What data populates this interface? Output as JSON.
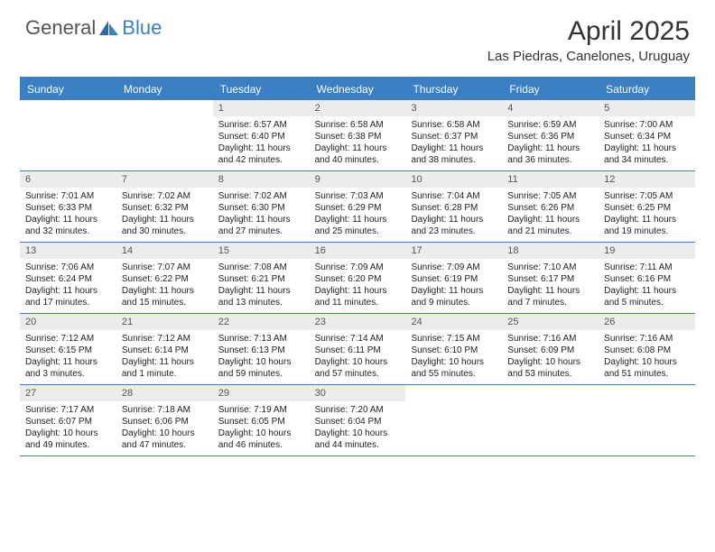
{
  "brand": {
    "general": "General",
    "blue": "Blue"
  },
  "title": "April 2025",
  "location": "Las Piedras, Canelones, Uruguay",
  "weekdays": [
    "Sunday",
    "Monday",
    "Tuesday",
    "Wednesday",
    "Thursday",
    "Friday",
    "Saturday"
  ],
  "colors": {
    "header_bg": "#3a7fc4",
    "header_text": "#ffffff",
    "daynum_bg": "#ececec",
    "border": "#3a7fc4",
    "text": "#222222"
  },
  "fonts": {
    "title_size": 30,
    "location_size": 15,
    "weekday_size": 12,
    "daynum_size": 11,
    "body_size": 10
  },
  "weeks": [
    [
      null,
      null,
      {
        "n": "1",
        "sr": "Sunrise: 6:57 AM",
        "ss": "Sunset: 6:40 PM",
        "dl1": "Daylight: 11 hours",
        "dl2": "and 42 minutes."
      },
      {
        "n": "2",
        "sr": "Sunrise: 6:58 AM",
        "ss": "Sunset: 6:38 PM",
        "dl1": "Daylight: 11 hours",
        "dl2": "and 40 minutes."
      },
      {
        "n": "3",
        "sr": "Sunrise: 6:58 AM",
        "ss": "Sunset: 6:37 PM",
        "dl1": "Daylight: 11 hours",
        "dl2": "and 38 minutes."
      },
      {
        "n": "4",
        "sr": "Sunrise: 6:59 AM",
        "ss": "Sunset: 6:36 PM",
        "dl1": "Daylight: 11 hours",
        "dl2": "and 36 minutes."
      },
      {
        "n": "5",
        "sr": "Sunrise: 7:00 AM",
        "ss": "Sunset: 6:34 PM",
        "dl1": "Daylight: 11 hours",
        "dl2": "and 34 minutes."
      }
    ],
    [
      {
        "n": "6",
        "sr": "Sunrise: 7:01 AM",
        "ss": "Sunset: 6:33 PM",
        "dl1": "Daylight: 11 hours",
        "dl2": "and 32 minutes."
      },
      {
        "n": "7",
        "sr": "Sunrise: 7:02 AM",
        "ss": "Sunset: 6:32 PM",
        "dl1": "Daylight: 11 hours",
        "dl2": "and 30 minutes."
      },
      {
        "n": "8",
        "sr": "Sunrise: 7:02 AM",
        "ss": "Sunset: 6:30 PM",
        "dl1": "Daylight: 11 hours",
        "dl2": "and 27 minutes."
      },
      {
        "n": "9",
        "sr": "Sunrise: 7:03 AM",
        "ss": "Sunset: 6:29 PM",
        "dl1": "Daylight: 11 hours",
        "dl2": "and 25 minutes."
      },
      {
        "n": "10",
        "sr": "Sunrise: 7:04 AM",
        "ss": "Sunset: 6:28 PM",
        "dl1": "Daylight: 11 hours",
        "dl2": "and 23 minutes."
      },
      {
        "n": "11",
        "sr": "Sunrise: 7:05 AM",
        "ss": "Sunset: 6:26 PM",
        "dl1": "Daylight: 11 hours",
        "dl2": "and 21 minutes."
      },
      {
        "n": "12",
        "sr": "Sunrise: 7:05 AM",
        "ss": "Sunset: 6:25 PM",
        "dl1": "Daylight: 11 hours",
        "dl2": "and 19 minutes."
      }
    ],
    [
      {
        "n": "13",
        "sr": "Sunrise: 7:06 AM",
        "ss": "Sunset: 6:24 PM",
        "dl1": "Daylight: 11 hours",
        "dl2": "and 17 minutes."
      },
      {
        "n": "14",
        "sr": "Sunrise: 7:07 AM",
        "ss": "Sunset: 6:22 PM",
        "dl1": "Daylight: 11 hours",
        "dl2": "and 15 minutes."
      },
      {
        "n": "15",
        "sr": "Sunrise: 7:08 AM",
        "ss": "Sunset: 6:21 PM",
        "dl1": "Daylight: 11 hours",
        "dl2": "and 13 minutes."
      },
      {
        "n": "16",
        "sr": "Sunrise: 7:09 AM",
        "ss": "Sunset: 6:20 PM",
        "dl1": "Daylight: 11 hours",
        "dl2": "and 11 minutes."
      },
      {
        "n": "17",
        "sr": "Sunrise: 7:09 AM",
        "ss": "Sunset: 6:19 PM",
        "dl1": "Daylight: 11 hours",
        "dl2": "and 9 minutes."
      },
      {
        "n": "18",
        "sr": "Sunrise: 7:10 AM",
        "ss": "Sunset: 6:17 PM",
        "dl1": "Daylight: 11 hours",
        "dl2": "and 7 minutes."
      },
      {
        "n": "19",
        "sr": "Sunrise: 7:11 AM",
        "ss": "Sunset: 6:16 PM",
        "dl1": "Daylight: 11 hours",
        "dl2": "and 5 minutes."
      }
    ],
    [
      {
        "n": "20",
        "sr": "Sunrise: 7:12 AM",
        "ss": "Sunset: 6:15 PM",
        "dl1": "Daylight: 11 hours",
        "dl2": "and 3 minutes."
      },
      {
        "n": "21",
        "sr": "Sunrise: 7:12 AM",
        "ss": "Sunset: 6:14 PM",
        "dl1": "Daylight: 11 hours",
        "dl2": "and 1 minute."
      },
      {
        "n": "22",
        "sr": "Sunrise: 7:13 AM",
        "ss": "Sunset: 6:13 PM",
        "dl1": "Daylight: 10 hours",
        "dl2": "and 59 minutes."
      },
      {
        "n": "23",
        "sr": "Sunrise: 7:14 AM",
        "ss": "Sunset: 6:11 PM",
        "dl1": "Daylight: 10 hours",
        "dl2": "and 57 minutes."
      },
      {
        "n": "24",
        "sr": "Sunrise: 7:15 AM",
        "ss": "Sunset: 6:10 PM",
        "dl1": "Daylight: 10 hours",
        "dl2": "and 55 minutes."
      },
      {
        "n": "25",
        "sr": "Sunrise: 7:16 AM",
        "ss": "Sunset: 6:09 PM",
        "dl1": "Daylight: 10 hours",
        "dl2": "and 53 minutes."
      },
      {
        "n": "26",
        "sr": "Sunrise: 7:16 AM",
        "ss": "Sunset: 6:08 PM",
        "dl1": "Daylight: 10 hours",
        "dl2": "and 51 minutes."
      }
    ],
    [
      {
        "n": "27",
        "sr": "Sunrise: 7:17 AM",
        "ss": "Sunset: 6:07 PM",
        "dl1": "Daylight: 10 hours",
        "dl2": "and 49 minutes."
      },
      {
        "n": "28",
        "sr": "Sunrise: 7:18 AM",
        "ss": "Sunset: 6:06 PM",
        "dl1": "Daylight: 10 hours",
        "dl2": "and 47 minutes."
      },
      {
        "n": "29",
        "sr": "Sunrise: 7:19 AM",
        "ss": "Sunset: 6:05 PM",
        "dl1": "Daylight: 10 hours",
        "dl2": "and 46 minutes."
      },
      {
        "n": "30",
        "sr": "Sunrise: 7:20 AM",
        "ss": "Sunset: 6:04 PM",
        "dl1": "Daylight: 10 hours",
        "dl2": "and 44 minutes."
      },
      null,
      null,
      null
    ]
  ]
}
